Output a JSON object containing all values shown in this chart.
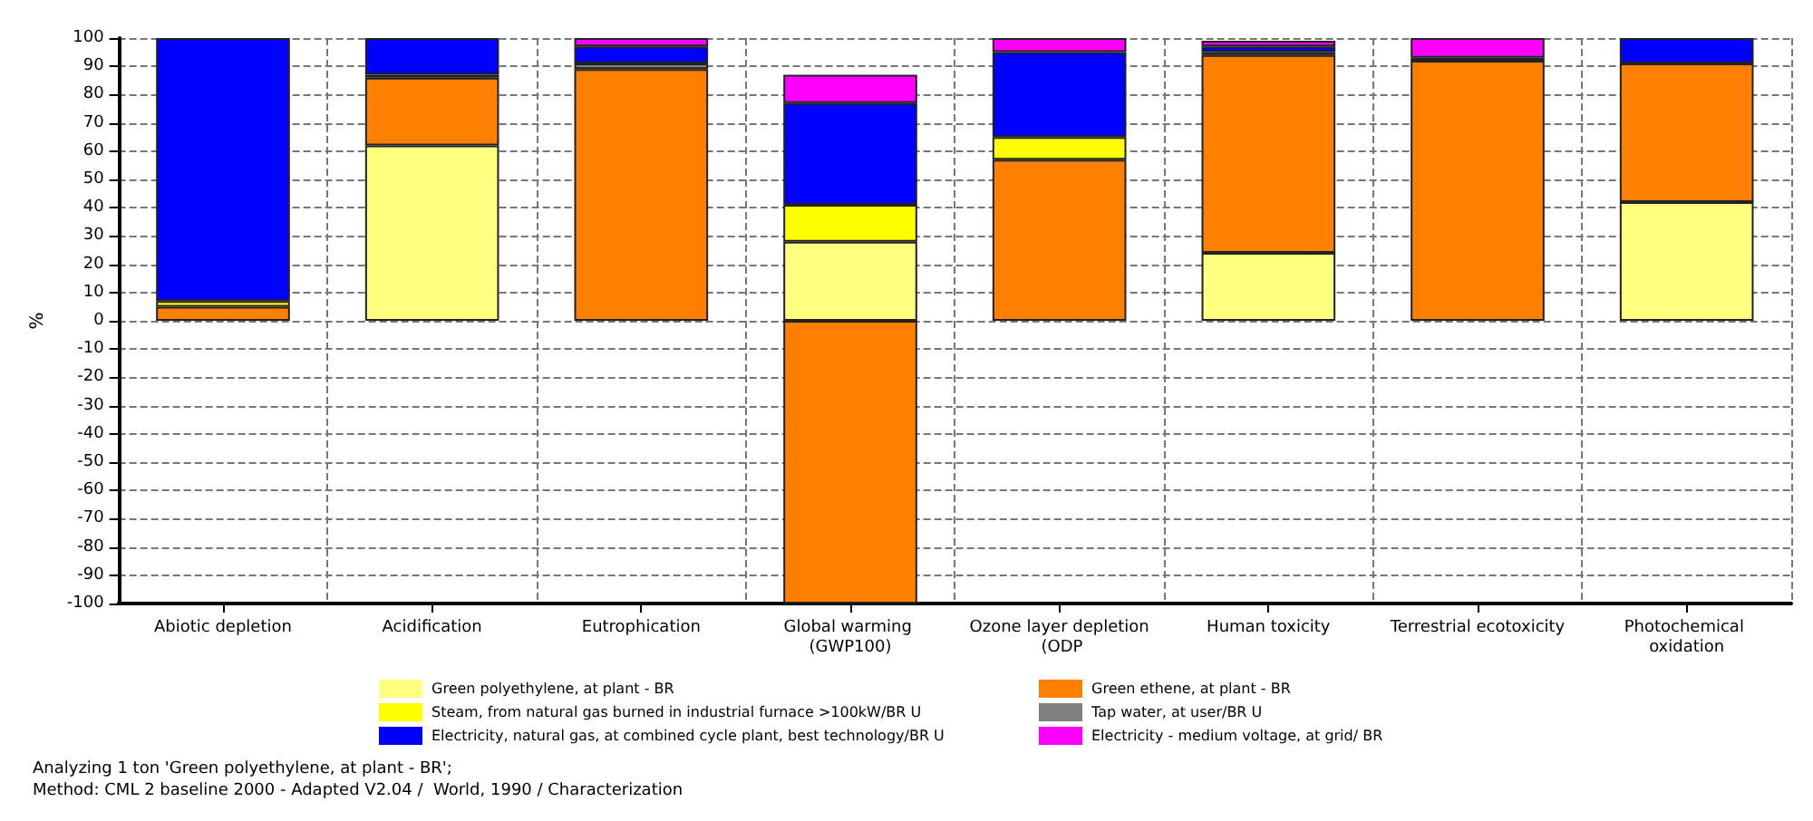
{
  "chart_data": {
    "type": "bar",
    "stacked": true,
    "ylabel": "%",
    "categories": [
      "Abiotic depletion",
      "Acidification",
      "Eutrophication",
      "Global warming (GWP100)",
      "Ozone layer depletion (ODP",
      "Human toxicity",
      "Terrestrial ecotoxicity",
      "Photochemical oxidation"
    ],
    "series": [
      {
        "name": "Green polyethylene, at plant - BR",
        "color": "#ffff80",
        "values": [
          null,
          62,
          null,
          28,
          null,
          24,
          null,
          42
        ]
      },
      {
        "name": "Green ethene, at plant - BR",
        "color": "#ff8000",
        "values": [
          5,
          24,
          89,
          -100,
          57,
          70,
          92,
          49
        ]
      },
      {
        "name": "Steam, from natural gas burned in industrial furnace >100kW/BR U",
        "color": "#ffff00",
        "values": [
          2,
          null,
          null,
          13,
          8,
          null,
          null,
          null
        ]
      },
      {
        "name": "Tap water, at user/BR U",
        "color": "#808080",
        "values": [
          null,
          1,
          2,
          null,
          null,
          1,
          1,
          null
        ]
      },
      {
        "name": "Electricity, natural gas, at combined cycle plant, best technology/BR U",
        "color": "#0000ff",
        "values": [
          93,
          13,
          6,
          36,
          30,
          2,
          null,
          9
        ]
      },
      {
        "name": "Electricity - medium voltage, at grid/ BR",
        "color": "#ff00ff",
        "values": [
          null,
          null,
          3,
          10,
          5,
          2,
          7,
          null
        ]
      }
    ],
    "ylim": [
      -100,
      100
    ],
    "yticks": [
      -100,
      -90,
      -80,
      -70,
      -60,
      -50,
      -40,
      -30,
      -20,
      -10,
      0,
      10,
      20,
      30,
      40,
      50,
      60,
      70,
      80,
      90,
      100
    ],
    "grid": true,
    "legend": "bottom",
    "annotations": [
      "Analyzing 1 ton 'Green polyethylene, at plant - BR';",
      "Method: CML 2 baseline 2000 - Adapted V2.04 /  World, 1990 / Characterization"
    ]
  }
}
